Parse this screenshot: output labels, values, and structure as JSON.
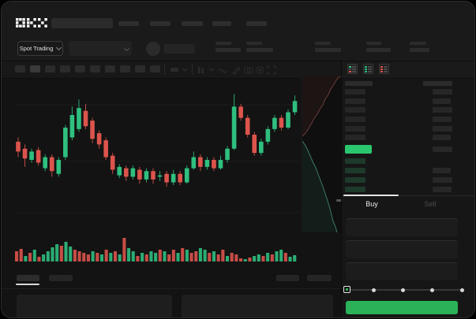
{
  "window": {
    "brand": "OKX"
  },
  "market_bar": {
    "selector_label": "Spot Trading"
  },
  "trade_panel": {
    "buy_tab": "Buy",
    "sell_tab": "Sell",
    "slider": {
      "value_percent": 0,
      "stops": 5
    }
  },
  "icons": {
    "okx-logo": "pixel-block OKX wordmark",
    "chevron-down-icon": "css-chevron",
    "indicator-wave-icon": "~",
    "brush-icon": "diagonal pencil",
    "camera-icon": "camera glyph",
    "settings-icon": "gear circle",
    "fullscreen-icon": "expand corners",
    "orderbook-all-icon": "green+red book rows",
    "orderbook-bids-icon": "green book rows",
    "orderbook-asks-icon": "red book rows"
  },
  "colors": {
    "candle_green": "#2fbf7f",
    "candle_red": "#dc544c",
    "book_highlight_green": "#2bc76e",
    "buy_button_green": "#2bb259",
    "depth_ask_red": "#6b3d3a",
    "depth_bid_teal": "#3e7a6d"
  },
  "orderbook": {
    "ask_rows": 6,
    "bid_rows": 4,
    "highlight_row": "last-price green bar"
  },
  "chart_data": {
    "type": "candlestick",
    "title": "",
    "xlabel": "",
    "ylabel": "",
    "note": "no axis tick labels visible; values normalized 0-100 of pane height",
    "candles_ohlc": [
      [
        63,
        66,
        52,
        56
      ],
      [
        58,
        61,
        45,
        51
      ],
      [
        50,
        58,
        48,
        56
      ],
      [
        57,
        59,
        46,
        48
      ],
      [
        44,
        54,
        42,
        52
      ],
      [
        52,
        54,
        38,
        42
      ],
      [
        40,
        52,
        38,
        50
      ],
      [
        52,
        75,
        50,
        73
      ],
      [
        66,
        88,
        64,
        82
      ],
      [
        72,
        93,
        70,
        87
      ],
      [
        85,
        90,
        72,
        74
      ],
      [
        78,
        80,
        62,
        65
      ],
      [
        69,
        71,
        58,
        61
      ],
      [
        64,
        66,
        50,
        52
      ],
      [
        53,
        55,
        40,
        43
      ],
      [
        39,
        47,
        37,
        45
      ],
      [
        44,
        46,
        35,
        38
      ],
      [
        38,
        46,
        36,
        44
      ],
      [
        43,
        45,
        33,
        36
      ],
      [
        36,
        44,
        34,
        42
      ],
      [
        42,
        44,
        33,
        36
      ],
      [
        38,
        42,
        35,
        39
      ],
      [
        40,
        42,
        31,
        34
      ],
      [
        34,
        43,
        32,
        40
      ],
      [
        40,
        42,
        32,
        34
      ],
      [
        34,
        46,
        33,
        44
      ],
      [
        44,
        56,
        43,
        52
      ],
      [
        52,
        54,
        42,
        45
      ],
      [
        45,
        52,
        43,
        50
      ],
      [
        50,
        52,
        42,
        44
      ],
      [
        44,
        53,
        43,
        50
      ],
      [
        50,
        60,
        48,
        58
      ],
      [
        58,
        97,
        57,
        88
      ],
      [
        88,
        90,
        78,
        80
      ],
      [
        80,
        82,
        66,
        68
      ],
      [
        68,
        70,
        53,
        55
      ],
      [
        55,
        65,
        53,
        63
      ],
      [
        63,
        74,
        61,
        72
      ],
      [
        72,
        82,
        70,
        80
      ],
      [
        80,
        82,
        71,
        73
      ],
      [
        73,
        86,
        72,
        84
      ],
      [
        84,
        96,
        82,
        92
      ]
    ],
    "volume": {
      "heights": [
        13,
        16,
        7,
        11,
        15,
        6,
        9,
        13,
        18,
        22,
        20,
        25,
        19,
        15,
        13,
        11,
        9,
        13,
        11,
        9,
        15,
        11,
        13,
        9,
        30,
        17,
        13,
        7,
        11,
        9,
        13,
        11,
        15,
        13,
        9,
        15,
        11,
        17,
        15,
        11,
        13,
        17,
        15,
        11,
        13,
        9,
        15,
        7,
        11,
        9,
        4,
        3,
        5,
        7,
        9,
        7,
        11,
        9,
        13,
        15,
        11,
        6,
        8
      ],
      "colors": "rrgrgrggggrggrrrrgrgrgrgrggrgrggrgrrgrgrrggrgrrgrrrgrggrgrggrgg"
    },
    "depth": {
      "asks_curve": [
        [
          0,
          76
        ],
        [
          4,
          72
        ],
        [
          8,
          66
        ],
        [
          12,
          59
        ],
        [
          15,
          53
        ],
        [
          19,
          48
        ],
        [
          22,
          42
        ],
        [
          26,
          36
        ],
        [
          29,
          29
        ],
        [
          33,
          23
        ],
        [
          36,
          16
        ],
        [
          40,
          10
        ],
        [
          43,
          5
        ],
        [
          46,
          1
        ],
        [
          50,
          0
        ]
      ],
      "bids_curve": [
        [
          0,
          82
        ],
        [
          4,
          88
        ],
        [
          7,
          94
        ],
        [
          10,
          101
        ],
        [
          13,
          108
        ],
        [
          17,
          116
        ],
        [
          20,
          124
        ],
        [
          23,
          132
        ],
        [
          26,
          140
        ],
        [
          29,
          149
        ],
        [
          32,
          158
        ],
        [
          35,
          168
        ],
        [
          37,
          176
        ],
        [
          39,
          184
        ],
        [
          42,
          191
        ],
        [
          44,
          198
        ]
      ]
    }
  }
}
